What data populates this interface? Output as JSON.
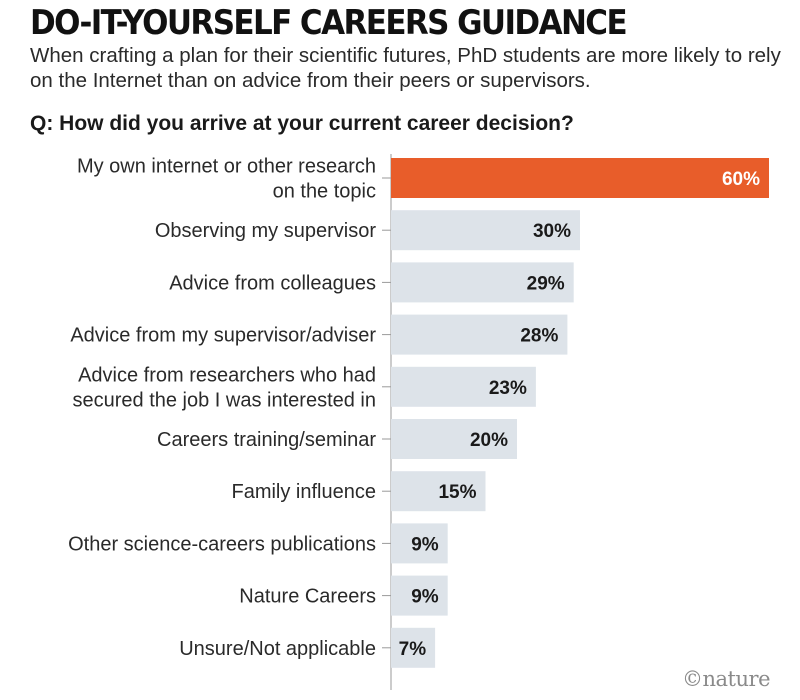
{
  "header": {
    "title": "DO-IT-YOURSELF CAREERS GUIDANCE",
    "subtitle": "When crafting a plan for their scientific futures, PhD students are more likely to rely on the Internet than on advice from their peers or supervisors.",
    "question": "Q: How did you arrive at your current career decision?"
  },
  "credit": "©nature",
  "chart_data": {
    "type": "bar",
    "orientation": "horizontal",
    "title": "DO-IT-YOURSELF CAREERS GUIDANCE",
    "subtitle": "When crafting a plan for their scientific futures, PhD students are more likely to rely on the Internet than on advice from their peers or supervisors.",
    "xlabel": "",
    "ylabel": "",
    "xlim": [
      0,
      60
    ],
    "grid": false,
    "legend": "none",
    "value_suffix": "%",
    "categories": [
      [
        "My own internet or other research",
        "on the topic"
      ],
      [
        "Observing my supervisor"
      ],
      [
        "Advice from colleagues"
      ],
      [
        "Advice from my supervisor/adviser"
      ],
      [
        "Advice from researchers who had",
        "secured the job I was interested in"
      ],
      [
        "Careers training/seminar"
      ],
      [
        "Family influence"
      ],
      [
        "Other science-careers publications"
      ],
      [
        "Nature Careers"
      ],
      [
        "Unsure/Not applicable"
      ]
    ],
    "values": [
      60,
      30,
      29,
      28,
      23,
      20,
      15,
      9,
      9,
      7
    ],
    "highlight_index": 0,
    "colors": {
      "highlight": "#e85d2a",
      "bar": "#dde3e9",
      "highlight_text": "#ffffff",
      "text": "#1a1a1a",
      "axis": "#9a9a9a"
    }
  }
}
